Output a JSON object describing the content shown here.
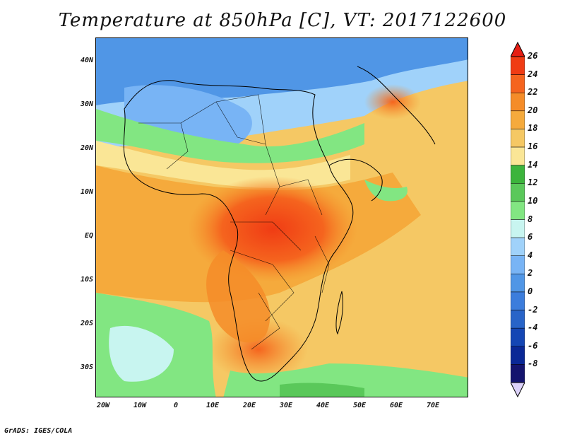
{
  "title": "Temperature at 850hPa [C], VT: 2017122600",
  "credit": "GrADS: IGES/COLA",
  "y_axis": [
    "40N",
    "30N",
    "20N",
    "10N",
    "EQ",
    "10S",
    "20S",
    "30S"
  ],
  "x_axis": [
    "20W",
    "10W",
    "0",
    "10E",
    "20E",
    "30E",
    "40E",
    "50E",
    "60E",
    "70E"
  ],
  "colorbar": {
    "labels": [
      "26",
      "24",
      "22",
      "20",
      "18",
      "16",
      "14",
      "12",
      "10",
      "8",
      "6",
      "4",
      "2",
      "0",
      "-2",
      "-4",
      "-6",
      "-8"
    ],
    "colors": [
      "#f03c14",
      "#f5641e",
      "#f58c28",
      "#f5aa3c",
      "#f5c864",
      "#fae696",
      "#3cb43c",
      "#5ac85a",
      "#82e682",
      "#c8f5f0",
      "#a0d2fa",
      "#78b4f5",
      "#5096e6",
      "#3c7ddc",
      "#2864c8",
      "#1446b4",
      "#0a2896",
      "#14146e"
    ],
    "top_arrow_color": "#e61e14",
    "bottom_arrow_color": "#dcd2fa"
  }
}
